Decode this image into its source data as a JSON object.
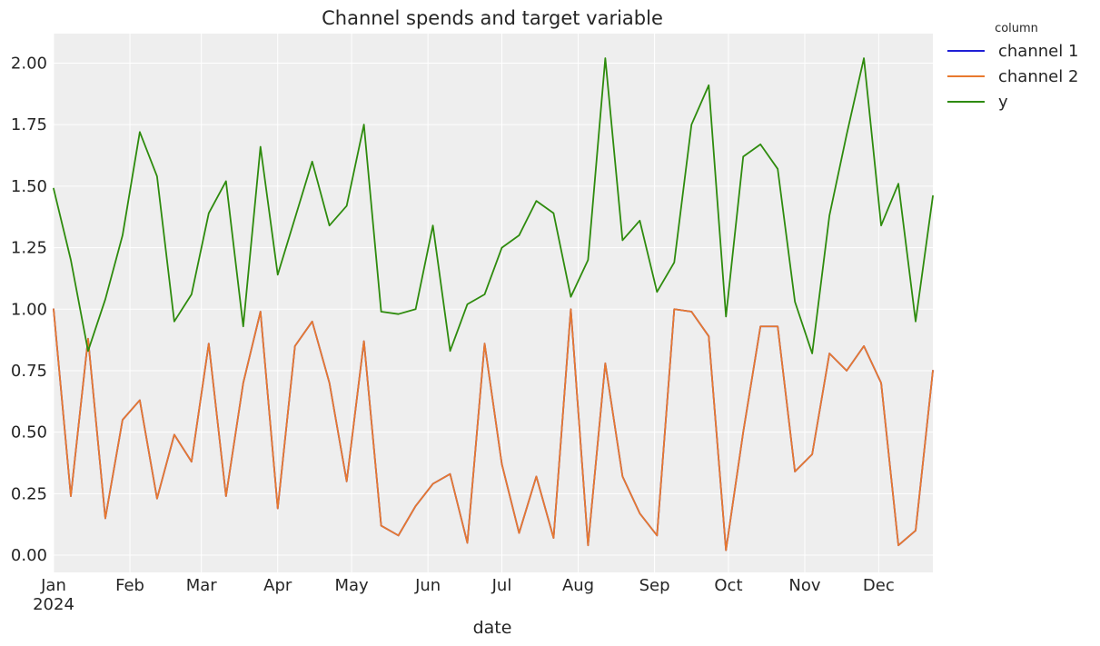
{
  "chart_data": {
    "type": "line",
    "title": "Channel spends and target variable",
    "xlabel": "date",
    "ylabel": "",
    "ylim": [
      -0.07,
      2.12
    ],
    "xlim": [
      "2024-01-01",
      "2024-12-23"
    ],
    "grid": true,
    "legend_position": "outside-top-right",
    "legend_title": "column",
    "x_tick_labels": [
      {
        "date": "2024-01-01",
        "label": "Jan",
        "sublabel": "2024"
      },
      {
        "date": "2024-02-01",
        "label": "Feb"
      },
      {
        "date": "2024-03-01",
        "label": "Mar"
      },
      {
        "date": "2024-04-01",
        "label": "Apr"
      },
      {
        "date": "2024-05-01",
        "label": "May"
      },
      {
        "date": "2024-06-01",
        "label": "Jun"
      },
      {
        "date": "2024-07-01",
        "label": "Jul"
      },
      {
        "date": "2024-08-01",
        "label": "Aug"
      },
      {
        "date": "2024-09-01",
        "label": "Sep"
      },
      {
        "date": "2024-10-01",
        "label": "Oct"
      },
      {
        "date": "2024-11-01",
        "label": "Nov"
      },
      {
        "date": "2024-12-01",
        "label": "Dec"
      }
    ],
    "y_ticks": [
      0.0,
      0.25,
      0.5,
      0.75,
      1.0,
      1.25,
      1.5,
      1.75,
      2.0
    ],
    "y_tick_labels": [
      "0.00",
      "0.25",
      "0.50",
      "0.75",
      "1.00",
      "1.25",
      "1.50",
      "1.75",
      "2.00"
    ],
    "x": [
      "2024-01-01",
      "2024-01-08",
      "2024-01-15",
      "2024-01-22",
      "2024-01-29",
      "2024-02-05",
      "2024-02-12",
      "2024-02-19",
      "2024-02-26",
      "2024-03-04",
      "2024-03-11",
      "2024-03-18",
      "2024-03-25",
      "2024-04-01",
      "2024-04-08",
      "2024-04-15",
      "2024-04-22",
      "2024-04-29",
      "2024-05-06",
      "2024-05-13",
      "2024-05-20",
      "2024-05-27",
      "2024-06-03",
      "2024-06-10",
      "2024-06-17",
      "2024-06-24",
      "2024-07-01",
      "2024-07-08",
      "2024-07-15",
      "2024-07-22",
      "2024-07-29",
      "2024-08-05",
      "2024-08-12",
      "2024-08-19",
      "2024-08-26",
      "2024-09-02",
      "2024-09-09",
      "2024-09-16",
      "2024-09-23",
      "2024-09-30",
      "2024-10-07",
      "2024-10-14",
      "2024-10-21",
      "2024-10-28",
      "2024-11-04",
      "2024-11-11",
      "2024-11-18",
      "2024-11-25",
      "2024-12-02",
      "2024-12-09",
      "2024-12-16",
      "2024-12-23"
    ],
    "series": [
      {
        "name": "channel 1",
        "color": "#1f1fd6",
        "values": [
          1.0,
          0.24,
          0.88,
          0.15,
          0.55,
          0.63,
          0.23,
          0.49,
          0.38,
          0.86,
          0.24,
          0.7,
          0.99,
          0.19,
          0.85,
          0.95,
          0.7,
          0.3,
          0.87,
          0.12,
          0.08,
          0.2,
          0.29,
          0.33,
          0.05,
          0.86,
          0.37,
          0.09,
          0.32,
          0.07,
          1.0,
          0.04,
          0.78,
          0.32,
          0.17,
          0.08,
          1.0,
          0.99,
          0.89,
          0.02,
          0.5,
          0.93,
          0.93,
          0.34,
          0.41,
          0.82,
          0.75,
          0.85,
          0.7,
          0.04,
          0.1,
          0.75
        ]
      },
      {
        "name": "channel 2",
        "color": "#e8792e",
        "values": [
          1.0,
          0.24,
          0.88,
          0.15,
          0.55,
          0.63,
          0.23,
          0.49,
          0.38,
          0.86,
          0.24,
          0.7,
          0.99,
          0.19,
          0.85,
          0.95,
          0.7,
          0.3,
          0.87,
          0.12,
          0.08,
          0.2,
          0.29,
          0.33,
          0.05,
          0.86,
          0.37,
          0.09,
          0.32,
          0.07,
          1.0,
          0.04,
          0.78,
          0.32,
          0.17,
          0.08,
          1.0,
          0.99,
          0.89,
          0.02,
          0.5,
          0.93,
          0.93,
          0.34,
          0.41,
          0.82,
          0.75,
          0.85,
          0.7,
          0.04,
          0.1,
          0.75
        ]
      },
      {
        "name": "y",
        "color": "#2e8b0d",
        "values": [
          1.49,
          1.2,
          0.83,
          1.04,
          1.3,
          1.72,
          1.54,
          0.95,
          1.06,
          1.39,
          1.52,
          0.93,
          1.66,
          1.14,
          1.37,
          1.6,
          1.34,
          1.42,
          1.75,
          0.99,
          0.98,
          1.0,
          1.34,
          0.83,
          1.02,
          1.06,
          1.25,
          1.3,
          1.44,
          1.39,
          1.05,
          1.2,
          2.02,
          1.28,
          1.36,
          1.07,
          1.19,
          1.75,
          1.91,
          0.97,
          1.62,
          1.67,
          1.57,
          1.03,
          0.82,
          1.38,
          1.71,
          2.02,
          1.34,
          1.51,
          0.95,
          1.46
        ]
      }
    ]
  },
  "colors": {
    "plot_background": "#eeeeee",
    "grid": "#ffffff",
    "text": "#262626"
  }
}
